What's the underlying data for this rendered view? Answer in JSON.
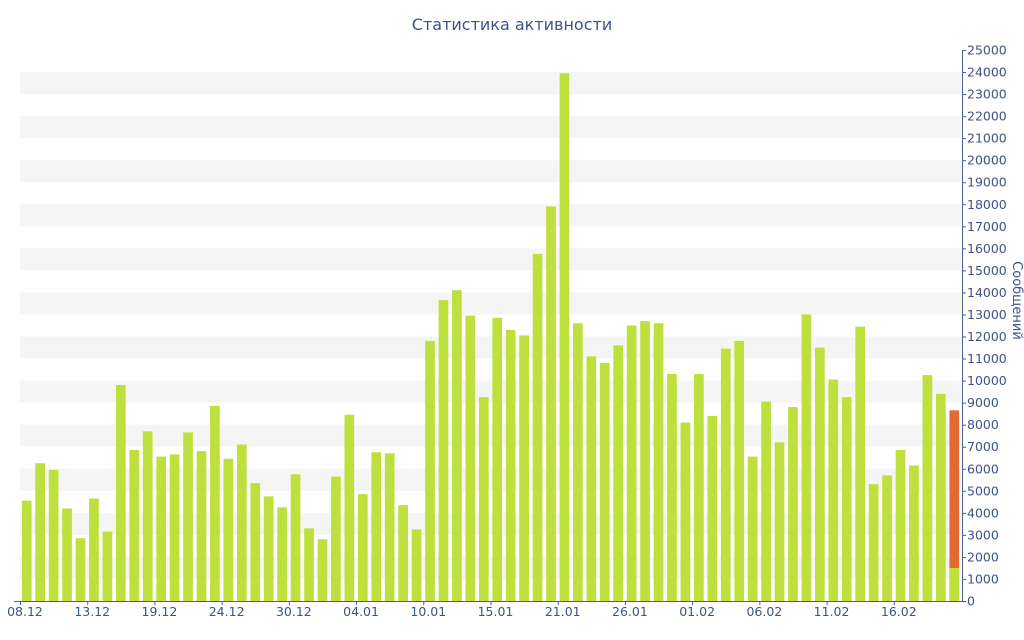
{
  "chart_data": {
    "type": "bar",
    "title": "Статистика активности",
    "ylabel": "Сообщений",
    "ylim": [
      0,
      25000
    ],
    "y_ticks": [
      0,
      1000,
      2000,
      3000,
      4000,
      5000,
      6000,
      7000,
      8000,
      9000,
      10000,
      11000,
      12000,
      13000,
      14000,
      15000,
      16000,
      17000,
      18000,
      19000,
      20000,
      21000,
      22000,
      23000,
      24000,
      25000
    ],
    "x_tick_labels": [
      {
        "index": 0,
        "label": "08.12"
      },
      {
        "index": 5,
        "label": "13.12"
      },
      {
        "index": 10,
        "label": "19.12"
      },
      {
        "index": 15,
        "label": "24.12"
      },
      {
        "index": 20,
        "label": "30.12"
      },
      {
        "index": 25,
        "label": "04.01"
      },
      {
        "index": 30,
        "label": "10.01"
      },
      {
        "index": 35,
        "label": "15.01"
      },
      {
        "index": 40,
        "label": "21.01"
      },
      {
        "index": 45,
        "label": "26.01"
      },
      {
        "index": 50,
        "label": "01.02"
      },
      {
        "index": 55,
        "label": "06.02"
      },
      {
        "index": 60,
        "label": "11.02"
      },
      {
        "index": 65,
        "label": "16.02"
      }
    ],
    "values": [
      4550,
      6250,
      5950,
      4200,
      2850,
      4650,
      3150,
      9800,
      6850,
      7700,
      6550,
      6650,
      7650,
      6800,
      8850,
      6450,
      7100,
      5350,
      4750,
      4250,
      5750,
      3300,
      2800,
      5650,
      8450,
      4850,
      6750,
      6700,
      4350,
      3250,
      11800,
      13650,
      14100,
      12950,
      9250,
      12850,
      12300,
      12050,
      15750,
      17900,
      23950,
      12600,
      11100,
      10800,
      11600,
      12500,
      12700,
      12600,
      10300,
      8100,
      10300,
      8400,
      11450,
      11800,
      6550,
      9050,
      7200,
      8800,
      13000,
      11500,
      10050,
      9250,
      12450,
      5300,
      5700,
      6850,
      6150,
      10250,
      9400,
      8650
    ],
    "current_index": 69,
    "current_split_value": 1500,
    "grid": true,
    "colors": {
      "bar": "#bde03c",
      "current_bar": "#e36a2e",
      "text": "#3e5386",
      "axis": "#485f8f",
      "grid_band": "#f5f5f5"
    }
  }
}
